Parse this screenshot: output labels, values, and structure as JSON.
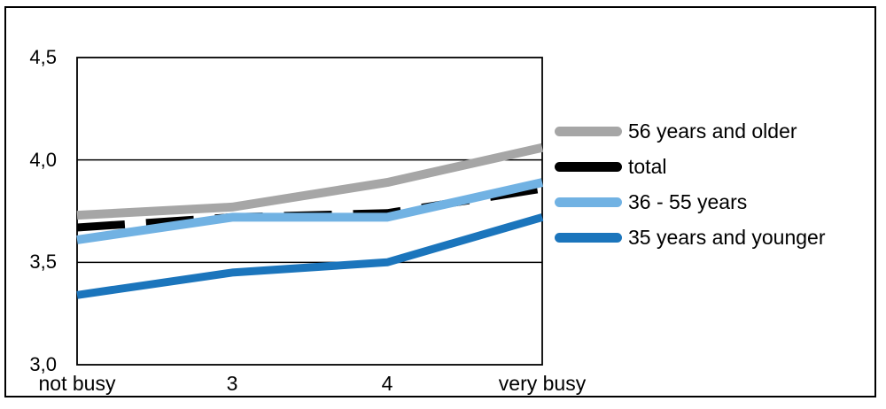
{
  "chart_data": {
    "type": "line",
    "title": "",
    "xlabel": "",
    "ylabel": "",
    "categories": [
      "not busy",
      "3",
      "4",
      "very busy"
    ],
    "series": [
      {
        "name": "56 years and older",
        "values": [
          3.73,
          3.77,
          3.89,
          4.06
        ],
        "color": "#a6a6a6",
        "dash": "",
        "width": 10
      },
      {
        "name": "total",
        "values": [
          3.67,
          3.72,
          3.74,
          3.86
        ],
        "color": "#000000",
        "dash": "54 24",
        "width": 9
      },
      {
        "name": "36 - 55 years",
        "values": [
          3.61,
          3.72,
          3.72,
          3.89
        ],
        "color": "#71b2e3",
        "dash": "",
        "width": 10
      },
      {
        "name": "35 years and younger",
        "values": [
          3.34,
          3.45,
          3.5,
          3.72
        ],
        "color": "#1b75bc",
        "dash": "",
        "width": 9
      }
    ],
    "ylim": [
      3.0,
      4.5
    ],
    "yticks": [
      {
        "value": 3.0,
        "label": "3,0"
      },
      {
        "value": 3.5,
        "label": "3,5"
      },
      {
        "value": 4.0,
        "label": "4,0"
      },
      {
        "value": 4.5,
        "label": "4,5"
      }
    ],
    "grid": "horizontal",
    "legend_position": "right",
    "decimal_separator": ",",
    "plot_border_color": "#000000",
    "gridline_color": "#000000"
  },
  "legend": {
    "items": [
      {
        "label": "56 years and older",
        "color": "#a6a6a6"
      },
      {
        "label": "total",
        "color": "#000000"
      },
      {
        "label": "36 - 55 years",
        "color": "#71b2e3"
      },
      {
        "label": "35 years and younger",
        "color": "#1b75bc"
      }
    ]
  }
}
